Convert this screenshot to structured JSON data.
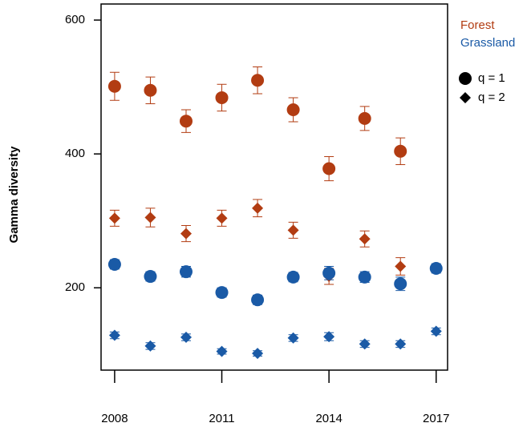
{
  "chart_data": {
    "type": "scatter",
    "y_label": "Gamma diversity",
    "x": [
      2008,
      2009,
      2010,
      2011,
      2012,
      2013,
      2014,
      2015,
      2016,
      2017
    ],
    "xlim": [
      2007.62,
      2017.32
    ],
    "xticks": [
      2008,
      2011,
      2014,
      2017
    ],
    "ylim": [
      77,
      624
    ],
    "yticks": [
      200,
      400,
      600
    ],
    "markers": [
      {
        "name": "q = 1",
        "shape": "circle"
      },
      {
        "name": "q = 2",
        "shape": "diamond"
      }
    ],
    "groups": [
      {
        "name": "Forest",
        "color": "#b23c12",
        "series": [
          {
            "values": [
              501,
              495,
              449,
              484,
              510,
              466,
              378,
              453,
              404,
              null
            ],
            "errors": [
              21,
              20,
              17,
              20,
              20,
              18,
              18,
              18,
              20,
              null
            ]
          },
          {
            "values": [
              304,
              305,
              281,
              304,
              319,
              286,
              217,
              273,
              232,
              null
            ],
            "errors": [
              12,
              14,
              12,
              12,
              13,
              12,
              12,
              12,
              13,
              null
            ]
          }
        ]
      },
      {
        "name": "Grassland",
        "color": "#1a5aa6",
        "series": [
          {
            "values": [
              235,
              217,
              224,
              193,
              182,
              216,
              222,
              216,
              206,
              229
            ],
            "errors": [
              7,
              7,
              8,
              7,
              7,
              7,
              10,
              8,
              10,
              7
            ]
          },
          {
            "values": [
              129,
              113,
              126,
              105,
              102,
              125,
              127,
              116,
              116,
              135
            ],
            "errors": [
              5,
              5,
              5,
              4,
              4,
              5,
              6,
              5,
              5,
              5
            ]
          }
        ]
      }
    ]
  }
}
